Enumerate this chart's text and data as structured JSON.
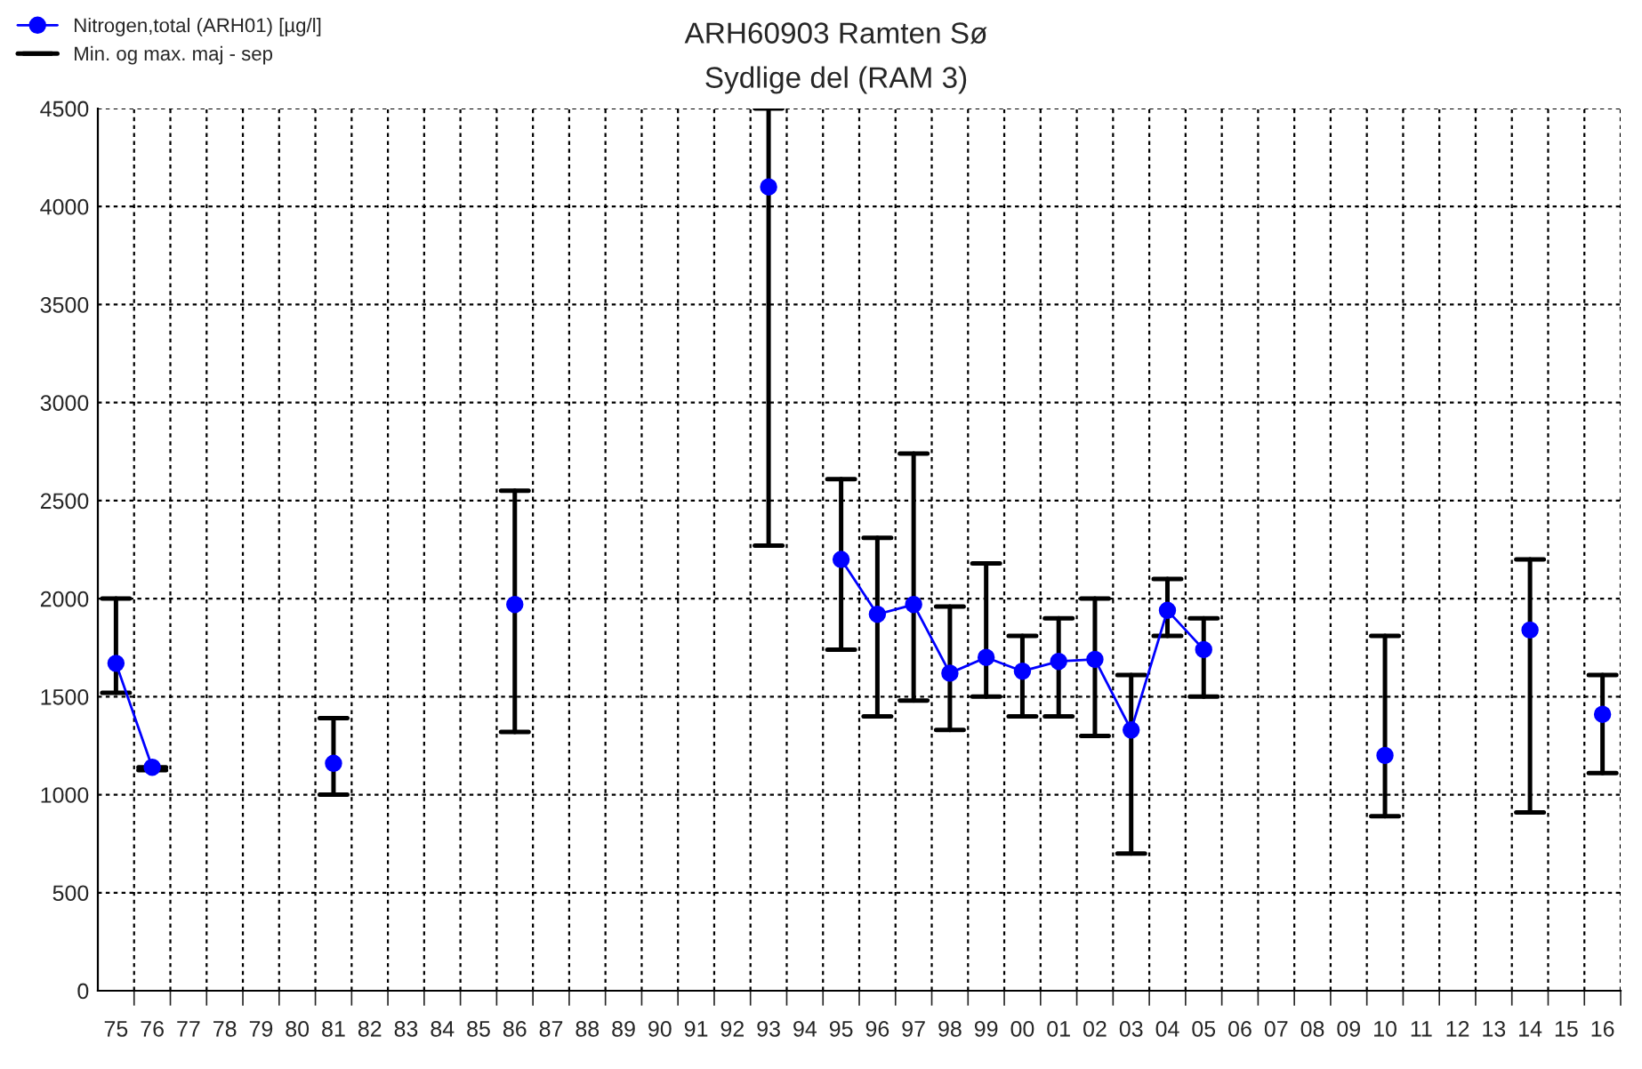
{
  "chart_data": {
    "type": "line",
    "title": "ARH60903 Ramten Sø",
    "subtitle": "Sydlige del (RAM 3)",
    "categories": [
      "75",
      "76",
      "77",
      "78",
      "79",
      "80",
      "81",
      "82",
      "83",
      "84",
      "85",
      "86",
      "87",
      "88",
      "89",
      "90",
      "91",
      "92",
      "93",
      "94",
      "95",
      "96",
      "97",
      "98",
      "99",
      "00",
      "01",
      "02",
      "03",
      "04",
      "05",
      "06",
      "07",
      "08",
      "09",
      "10",
      "11",
      "12",
      "13",
      "14",
      "15",
      "16"
    ],
    "series": [
      {
        "name": "Nitrogen,total (ARH01) [µg/l]",
        "color": "#0000ff",
        "marker": "circle",
        "line_style": "solid",
        "values": [
          1670,
          1140,
          null,
          null,
          null,
          null,
          1160,
          null,
          null,
          null,
          null,
          1970,
          null,
          null,
          null,
          null,
          null,
          null,
          4100,
          null,
          2200,
          1920,
          1970,
          1620,
          1700,
          1630,
          1680,
          1690,
          1330,
          1940,
          1740,
          null,
          null,
          null,
          null,
          1200,
          null,
          null,
          null,
          1840,
          null,
          1410
        ],
        "errors": [
          [
            1520,
            2000
          ],
          [
            1125,
            1140
          ],
          null,
          null,
          null,
          null,
          [
            1000,
            1390
          ],
          null,
          null,
          null,
          null,
          [
            1320,
            2550
          ],
          null,
          null,
          null,
          null,
          null,
          null,
          [
            2270,
            4500
          ],
          null,
          [
            1740,
            2610
          ],
          [
            1400,
            2310
          ],
          [
            1480,
            2740
          ],
          [
            1330,
            1960
          ],
          [
            1500,
            2180
          ],
          [
            1400,
            1810
          ],
          [
            1400,
            1900
          ],
          [
            1300,
            2000
          ],
          [
            700,
            1610
          ],
          [
            1810,
            2100
          ],
          [
            1500,
            1900
          ],
          null,
          null,
          null,
          null,
          [
            890,
            1810
          ],
          null,
          null,
          null,
          [
            910,
            2200
          ],
          null,
          [
            1110,
            1610
          ]
        ]
      }
    ],
    "annotations": [
      "Min. og max. maj - sep"
    ],
    "ylim": [
      0,
      4500
    ],
    "yticks": [
      0,
      500,
      1000,
      1500,
      2000,
      2500,
      3000,
      3500,
      4000,
      4500
    ],
    "grid": true,
    "legend": "top left"
  }
}
